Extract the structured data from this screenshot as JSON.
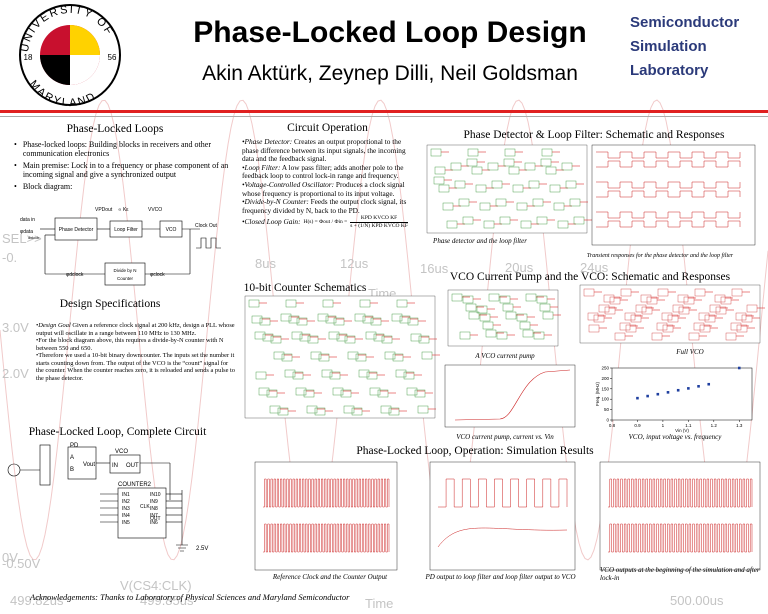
{
  "header": {
    "title": "Phase-Locked Loop Design",
    "authors": "Akin Aktürk, Zeynep Dilli, Neil Goldsman",
    "lab": [
      "Semiconductor",
      "Simulation",
      "Laboratory"
    ],
    "logo": {
      "top": "UNIVERSITY OF",
      "bottom": "MARYLAND",
      "left": "18",
      "right": "56"
    }
  },
  "background_labels": [
    "3.0V",
    "2.0V",
    "SEL>>",
    "-0.",
    "0V",
    "-0.50V",
    "499.82us",
    "499.85us",
    "8us",
    "12us",
    "16us",
    "20us",
    "24us",
    "Time",
    "V(CS4:CLK)",
    "500.00us",
    "Time"
  ],
  "pll": {
    "heading": "Phase-Locked Loops",
    "bullets": [
      "Phase-locked loops: Building blocks in receivers and other communication electronics",
      "Main premise: Lock in to a frequency or phase component of an incoming signal and give a synchronized output",
      "Block diagram:"
    ],
    "diagram": {
      "data_in": "data in",
      "phi_data": "φdata",
      "dclock": "dclock",
      "pd": "Phase Detector",
      "lf": "Loop Filter",
      "vco": "VCO",
      "clock_out": "Clock Out",
      "divider": [
        "Divide by N",
        "Counter"
      ],
      "phi_dclock": "φdclock",
      "phi_clock": "φclock",
      "vpd": "VPDout",
      "kpd": "∝ Kε",
      "vvco": "VVCO"
    }
  },
  "operation": {
    "heading": "Circuit Operation",
    "items": [
      {
        "term": "•Phase Detector:",
        "text": " Creates an output proportional to the phase difference between its input signals, the incoming data and the feedback signal."
      },
      {
        "term": "•Loop Filter:",
        "text": " A low pass filter; adds another pole to the feedback loop to control lock-in range and frequency."
      },
      {
        "term": "•Voltage-Controlled Oscillator:",
        "text": " Produces a clock signal whose frequency is proportional to its input voltage."
      },
      {
        "term": "•Divide-by-N Counter:",
        "text": " Feeds the output clock signal, its frequency divided by N, back to the PD."
      }
    ],
    "gain": {
      "term": "•Closed Loop Gain:",
      "lhs": "H(s) = Φout / Φin =",
      "num": "KPD KVCO KF",
      "den": "s + (1/N) KPD KVCO KF"
    }
  },
  "pd_filter": {
    "heading": "Phase Detector & Loop Filter: Schematic and Responses",
    "caption": "Phase detector and the loop filter",
    "response_caption": "Transient responses for the phase detector and the loop filter"
  },
  "counter": {
    "heading": "10-bit Counter Schematics"
  },
  "vco": {
    "heading": "VCO Current Pump and the VCO: Schematic and Responses",
    "pump_caption": "A VCO current pump",
    "full_caption": "Full VCO",
    "pump_plot_caption": "VCO current pump, current vs. Vin",
    "chart_caption": "VCO, input voltage vs. frequency"
  },
  "chart_data": {
    "type": "scatter",
    "x": [
      0.9,
      0.94,
      0.98,
      1.02,
      1.06,
      1.1,
      1.14,
      1.18,
      1.3
    ],
    "values": [
      105,
      115,
      124,
      133,
      143,
      152,
      162,
      172,
      250
    ],
    "color": "#1f3f9f",
    "xlim": [
      0.8,
      1.35
    ],
    "ylim": [
      0,
      250
    ],
    "xticks": [
      0.8,
      0.9,
      1,
      1.1,
      1.2,
      1.3
    ],
    "yticks": [
      0,
      50,
      100,
      150,
      200,
      250
    ],
    "x_label": "Vin (V)",
    "y_label": "Freq. (MHz)"
  },
  "specs": {
    "heading": "Design Specifications",
    "items": [
      {
        "term": "•Design Goal",
        "text": " Given a reference clock signal at 200 kHz, design a PLL whose output will oscillate in a range between 110 MHz to 130 MHz."
      },
      {
        "term": "",
        "text": "•For the block diagram above, this requires a divide-by-N counter with N between 550 and 650."
      },
      {
        "term": "",
        "text": "•Therefore we used a 10-bit binary downcounter. The inputs set the number it starts counting down from. The output of the VCO is the “count” signal for the counter. When the counter reaches zero, it is reloaded and sends a pulse to the phase detector."
      }
    ]
  },
  "complete": {
    "heading": "Phase-Locked Loop, Complete Circuit",
    "labels": {
      "pd": "PD",
      "a": "A",
      "b": "B",
      "vout": "Vout",
      "vco": "VCO",
      "in": "IN",
      "out": "OUT",
      "counter": "COUNTER2",
      "clk": "CLK",
      "cout": "OUT",
      "supply": "2.5V"
    },
    "left_pins": [
      "IN1",
      "IN2",
      "IN3",
      "IN4",
      "IN5"
    ],
    "right_pins": [
      "IN10",
      "IN9",
      "IN8",
      "IN7",
      "IN6"
    ]
  },
  "results": {
    "heading": "Phase-Locked Loop, Operation: Simulation Results",
    "captions": [
      "Reference Clock and the Counter Output",
      "PD output to loop filter and loop filter output to VCO",
      "VCO outputs at the beginning of the simulation and after lock-in"
    ]
  },
  "acknowledgements": "Acknowledgements: Thanks to Laboratory of Physical Sciences and Maryland Semiconductor"
}
